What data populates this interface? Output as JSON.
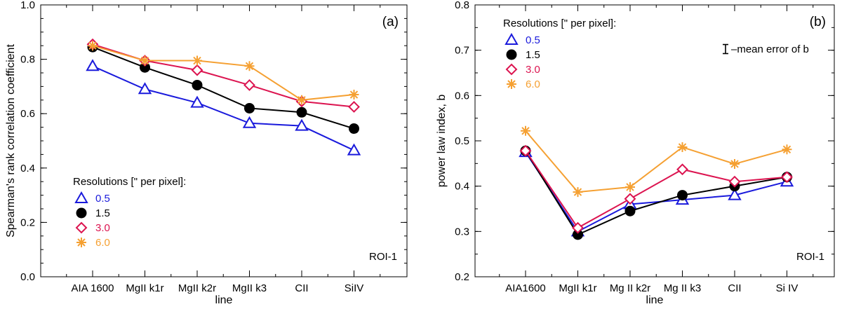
{
  "colors": {
    "res_0_5": "#1a1adc",
    "res_1_5": "#000000",
    "res_3_0": "#dc1450",
    "res_6_0": "#f5a032"
  },
  "chart_data": [
    {
      "type": "line",
      "panel_label": "(a)",
      "annotation": "ROI-1",
      "xlabel": "line",
      "ylabel": "Spearman's rank correlation coefficient",
      "categories": [
        "AIA 1600",
        "MgII k1r",
        "MgII k2r",
        "MgII k3",
        "CII",
        "SiIV"
      ],
      "ylim": [
        0.0,
        1.0
      ],
      "yticks": [
        0.0,
        0.2,
        0.4,
        0.6,
        0.8,
        1.0
      ],
      "yticklabels": [
        "0.0",
        "0.2",
        "0.4",
        "0.6",
        "0.8",
        "1.0"
      ],
      "legend": {
        "title": "Resolutions [\" per pixel]:",
        "placement": "lower-left"
      },
      "series": [
        {
          "name": "0.5",
          "marker": "triangle",
          "color": "#1a1adc",
          "values": [
            0.775,
            0.69,
            0.64,
            0.565,
            0.555,
            0.465
          ]
        },
        {
          "name": "1.5",
          "marker": "circle",
          "color": "#000000",
          "values": [
            0.845,
            0.77,
            0.705,
            0.62,
            0.605,
            0.545
          ]
        },
        {
          "name": "3.0",
          "marker": "diamond",
          "color": "#dc1450",
          "values": [
            0.855,
            0.795,
            0.76,
            0.705,
            0.645,
            0.625
          ]
        },
        {
          "name": "6.0",
          "marker": "asterisk",
          "color": "#f5a032",
          "values": [
            0.85,
            0.795,
            0.795,
            0.775,
            0.65,
            0.67
          ]
        }
      ]
    },
    {
      "type": "line",
      "panel_label": "(b)",
      "annotation": "ROI-1",
      "xlabel": "line",
      "ylabel": "power law index, b",
      "categories": [
        "AIA1600",
        "MgII k1r",
        "Mg II k2r",
        "Mg II k3",
        "CII",
        "Si IV"
      ],
      "ylim": [
        0.2,
        0.8
      ],
      "yticks": [
        0.2,
        0.3,
        0.4,
        0.5,
        0.6,
        0.7,
        0.8
      ],
      "yticklabels": [
        "0.2",
        "0.3",
        "0.4",
        "0.5",
        "0.6",
        "0.7",
        "0.8"
      ],
      "legend": {
        "title": "Resolutions [\" per pixel]:",
        "placement": "top-left"
      },
      "error_note": "–mean error of b",
      "mean_error_b": 0.02,
      "series": [
        {
          "name": "0.5",
          "marker": "triangle",
          "color": "#1a1adc",
          "values": [
            0.475,
            0.3,
            0.36,
            0.37,
            0.38,
            0.41
          ]
        },
        {
          "name": "1.5",
          "marker": "circle",
          "color": "#000000",
          "values": [
            0.478,
            0.293,
            0.345,
            0.38,
            0.4,
            0.42
          ]
        },
        {
          "name": "3.0",
          "marker": "diamond",
          "color": "#dc1450",
          "values": [
            0.478,
            0.308,
            0.372,
            0.437,
            0.41,
            0.42
          ]
        },
        {
          "name": "6.0",
          "marker": "asterisk",
          "color": "#f5a032",
          "values": [
            0.522,
            0.387,
            0.398,
            0.486,
            0.449,
            0.481
          ]
        }
      ]
    }
  ]
}
